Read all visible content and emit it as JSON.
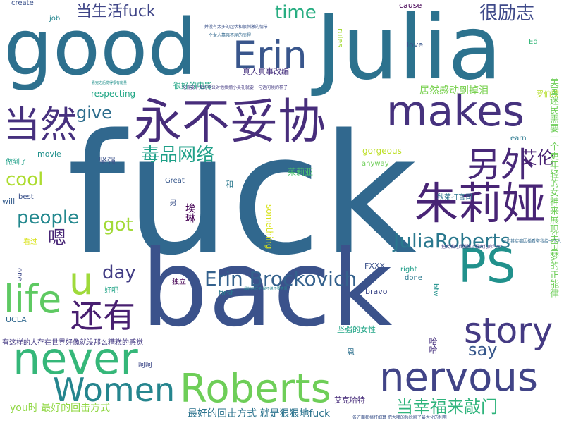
{
  "words": [
    {
      "t": "fuck",
      "c": "#31688e",
      "r": 0
    },
    {
      "t": "back",
      "c": "#3b528b",
      "r": 0
    },
    {
      "t": "Julia",
      "c": "#2c728e",
      "r": 0
    },
    {
      "t": "good",
      "c": "#2d708e",
      "r": 0
    },
    {
      "t": "永不妥协",
      "c": "#472d7b",
      "r": 0
    },
    {
      "t": "makes",
      "c": "#46327e",
      "r": 0
    },
    {
      "t": "朱莉娅",
      "c": "#482475",
      "r": 0
    },
    {
      "t": "Erin",
      "c": "#39568c",
      "r": 0
    },
    {
      "t": "PS",
      "c": "#21918c",
      "r": 0
    },
    {
      "t": "never",
      "c": "#35b779",
      "r": 0
    },
    {
      "t": "nervous",
      "c": "#414487",
      "r": 0
    },
    {
      "t": "Roberts",
      "c": "#6ece58",
      "r": 0
    },
    {
      "t": "Women",
      "c": "#25858e",
      "r": 0
    },
    {
      "t": "story",
      "c": "#443a83",
      "r": 0
    },
    {
      "t": "life",
      "c": "#5ec962",
      "r": 0
    },
    {
      "t": "当然",
      "c": "#46307e",
      "r": 0
    },
    {
      "t": "还有",
      "c": "#481f70",
      "r": 0
    },
    {
      "t": "另外",
      "c": "#482878",
      "r": 0
    },
    {
      "t": "u",
      "c": "#9fda3a",
      "r": 0
    },
    {
      "t": "当生活fuck",
      "c": "#404688",
      "r": 0
    },
    {
      "t": "很励志",
      "c": "#3e4989",
      "r": 0
    },
    {
      "t": "time",
      "c": "#27ad81",
      "r": 0
    },
    {
      "t": "Erin Brockovich",
      "c": "#34618d",
      "r": 0
    },
    {
      "t": "JuliaRoberts",
      "c": "#2a788e",
      "r": 0
    },
    {
      "t": "毒品网络",
      "c": "#1fa088",
      "r": 0
    },
    {
      "t": "give",
      "c": "#2e6e8e",
      "r": 0
    },
    {
      "t": "艾伦",
      "c": "#482173",
      "r": 0
    },
    {
      "t": "cool",
      "c": "#addc30",
      "r": 0
    },
    {
      "t": "people",
      "c": "#23888e",
      "r": 0
    },
    {
      "t": "got",
      "c": "#a2da37",
      "r": 0
    },
    {
      "t": "day",
      "c": "#433e85",
      "r": 0
    },
    {
      "t": "嗯",
      "c": "#482576",
      "r": 0
    },
    {
      "t": "say",
      "c": "#38588c",
      "r": 0
    },
    {
      "t": "当幸福来敲门",
      "c": "#2fb47c",
      "r": 0
    },
    {
      "t": "you时 最好的回击方式",
      "c": "#90d743",
      "r": 0
    },
    {
      "t": "最好的回击方式 就是狠狠地fuck",
      "c": "#2c738e",
      "r": 0
    },
    {
      "t": "真人真事改编",
      "c": "#46307e",
      "r": 0
    },
    {
      "t": "居然感动到掉泪",
      "c": "#7ad151",
      "r": 0
    },
    {
      "t": "很好的电影",
      "c": "#21a685",
      "r": 0
    },
    {
      "t": "respecting",
      "c": "#21a685",
      "r": 0
    },
    {
      "t": "坚强",
      "c": "#3b528b",
      "r": 0
    },
    {
      "t": "茱莉亚",
      "c": "#4ac16d",
      "r": 0
    },
    {
      "t": "秋菊打官司",
      "c": "#2c728e",
      "r": 0
    },
    {
      "t": "gorgeous",
      "c": "#bddf26",
      "r": 0
    },
    {
      "t": "anyway",
      "c": "#6ece58",
      "r": 0
    },
    {
      "t": "Great",
      "c": "#38588c",
      "r": 0
    },
    {
      "t": "和",
      "c": "#2a788e",
      "r": 0
    },
    {
      "t": "做到了",
      "c": "#1fa088",
      "r": 0
    },
    {
      "t": "movie",
      "c": "#21918c",
      "r": 0
    },
    {
      "t": "best",
      "c": "#3b528b",
      "r": 0
    },
    {
      "t": "will",
      "c": "#365d8d",
      "r": 0
    },
    {
      "t": "看过",
      "c": "#d8e219",
      "r": 0
    },
    {
      "t": "好吧",
      "c": "#20a486",
      "r": 0
    },
    {
      "t": "独立",
      "c": "#440154",
      "r": 0
    },
    {
      "t": "first",
      "c": "#2a788e",
      "r": 0
    },
    {
      "t": "UCLA",
      "c": "#31688e",
      "r": 0
    },
    {
      "t": "有这样的人存在世界好像就没那么糟糕的感觉",
      "c": "#443a83",
      "r": 0
    },
    {
      "t": "坚强的女性",
      "c": "#20a486",
      "r": 0
    },
    {
      "t": "恩",
      "c": "#2d708e",
      "r": 0
    },
    {
      "t": "呵呵",
      "c": "#3e4989",
      "r": 0
    },
    {
      "t": "艾克哈特",
      "c": "#472c7a",
      "r": 0
    },
    {
      "t": "FXXX",
      "c": "#3b528b",
      "r": 0
    },
    {
      "t": "done",
      "c": "#2a788e",
      "r": 0
    },
    {
      "t": "right",
      "c": "#1f9e89",
      "r": 0
    },
    {
      "t": "bravo",
      "c": "#3e4989",
      "r": 0
    },
    {
      "t": "cause",
      "c": "#440154",
      "r": 0
    },
    {
      "t": "love",
      "c": "#39568c",
      "r": 0
    },
    {
      "t": "earn",
      "c": "#2a788e",
      "r": 0
    },
    {
      "t": "罗伯茨",
      "c": "#b5de2b",
      "r": 0
    },
    {
      "t": "Ed",
      "c": "#35b779",
      "r": 0
    },
    {
      "t": "job",
      "c": "#25858e",
      "r": 0
    },
    {
      "t": "create",
      "c": "#3b528b",
      "r": 0
    },
    {
      "t": "rules",
      "c": "#a5db36",
      "r": 1
    },
    {
      "t": "something",
      "c": "#d8e219",
      "r": 1
    },
    {
      "t": "埃琳",
      "c": "#440154",
      "r": 1
    },
    {
      "t": "另",
      "c": "#3b528b",
      "r": 1
    },
    {
      "t": "one",
      "c": "#3e4989",
      "r": 1
    },
    {
      "t": "btw",
      "c": "#21918c",
      "r": 1
    },
    {
      "t": "哈哈",
      "c": "#46307e",
      "r": 1
    },
    {
      "t": "美国迷民需要一个更年轻的女神来展现美国梦的正能律",
      "c": "#6ece58",
      "r": 1
    }
  ],
  "tiny": [
    "并没有太多的起伏和很刺激的情节",
    "一个女人靠强不屈的历程",
    "看完之后觉得很有能量",
    "论得要卜克的老公对他插摘小吴礼就要一句话问候的样子",
    "一切其实都因播看壁我给一个人",
    "把大嘴的兵脱脱了最大化的利用",
    "各方面都挑打细算 把大嘴的兵脱脱了最大化的利用",
    "最好的样子 是不说不要意思"
  ]
}
